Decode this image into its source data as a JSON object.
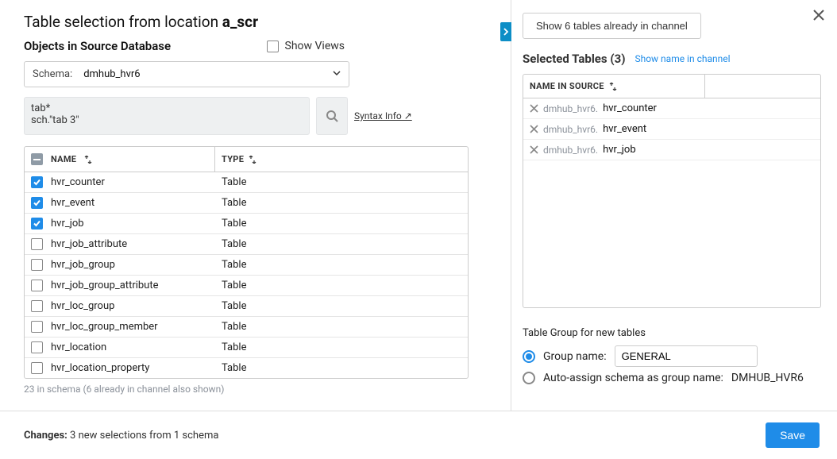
{
  "colors": {
    "primary": "#1f8ce8",
    "teal": "#0d8ec6",
    "muted": "#8a9099",
    "border": "#cccccc"
  },
  "left": {
    "title_prefix": "Table selection from location ",
    "location": "a_scr",
    "objects_label": "Objects in Source Database",
    "show_views_label": "Show Views",
    "schema_label": "Schema:",
    "schema_value": "dmhub_hvr6",
    "filter_value": "tab*\nsch.\"tab 3\"",
    "syntax_link": "Syntax Info ↗",
    "columns": {
      "name": "NAME",
      "type": "TYPE"
    },
    "rows": [
      {
        "checked": true,
        "name": "hvr_counter",
        "type": "Table"
      },
      {
        "checked": true,
        "name": "hvr_event",
        "type": "Table"
      },
      {
        "checked": true,
        "name": "hvr_job",
        "type": "Table"
      },
      {
        "checked": false,
        "name": "hvr_job_attribute",
        "type": "Table"
      },
      {
        "checked": false,
        "name": "hvr_job_group",
        "type": "Table"
      },
      {
        "checked": false,
        "name": "hvr_job_group_attribute",
        "type": "Table"
      },
      {
        "checked": false,
        "name": "hvr_loc_group",
        "type": "Table"
      },
      {
        "checked": false,
        "name": "hvr_loc_group_member",
        "type": "Table"
      },
      {
        "checked": false,
        "name": "hvr_location",
        "type": "Table"
      },
      {
        "checked": false,
        "name": "hvr_location_property",
        "type": "Table"
      }
    ],
    "status_line": "23 in schema (6 already in channel also shown)"
  },
  "right": {
    "show_existing_btn": "Show 6 tables already in channel",
    "selected_title": "Selected Tables (3)",
    "show_name_link": "Show name in channel",
    "col_name_in_source": "NAME IN SOURCE",
    "selected_rows": [
      {
        "schema": "dmhub_hvr6.",
        "name": "hvr_counter"
      },
      {
        "schema": "dmhub_hvr6.",
        "name": "hvr_event"
      },
      {
        "schema": "dmhub_hvr6.",
        "name": "hvr_job"
      }
    ],
    "group_title": "Table Group for new tables",
    "group_name_label": "Group name:",
    "group_name_value": "GENERAL",
    "auto_assign_label": "Auto-assign schema as group name:",
    "auto_assign_value": "DMHUB_HVR6"
  },
  "footer": {
    "changes_label": "Changes:",
    "changes_text": " 3 new selections from 1 schema",
    "save_label": "Save"
  }
}
